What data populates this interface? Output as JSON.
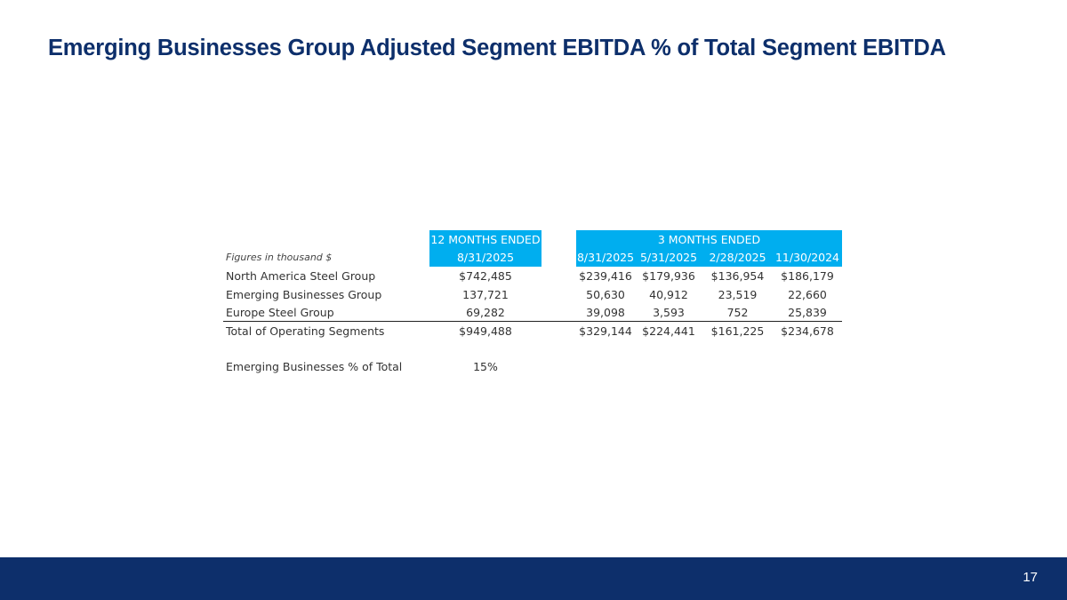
{
  "title": "Emerging Businesses Group Adjusted Segment EBITDA % of Total Segment EBITDA",
  "table": {
    "group_12m": "12 MONTHS ENDED",
    "group_3m": "3 MONTHS ENDED",
    "units_note": "Figures in thousand $",
    "columns": [
      "8/31/2025",
      "8/31/2025",
      "5/31/2025",
      "2/28/2025",
      "11/30/2024"
    ],
    "rows": [
      {
        "label": "North America Steel Group",
        "values": [
          "$742,485",
          "$239,416",
          "$179,936",
          "$136,954",
          "$186,179"
        ]
      },
      {
        "label": "Emerging Businesses Group",
        "values": [
          "137,721",
          "50,630",
          "40,912",
          "23,519",
          "22,660"
        ]
      },
      {
        "label": "Europe Steel Group",
        "values": [
          "69,282",
          "39,098",
          "3,593",
          "752",
          "25,839"
        ]
      }
    ],
    "total": {
      "label": "Total of Operating Segments",
      "values": [
        "$949,488",
        "$329,144",
        "$224,441",
        "$161,225",
        "$234,678"
      ]
    },
    "pct": {
      "label": "Emerging Businesses % of Total",
      "value": "15%"
    }
  },
  "colors": {
    "header_bg": "#00aeef",
    "title": "#0d2f6b",
    "footer": "#0d2f6b"
  },
  "page_number": "17"
}
